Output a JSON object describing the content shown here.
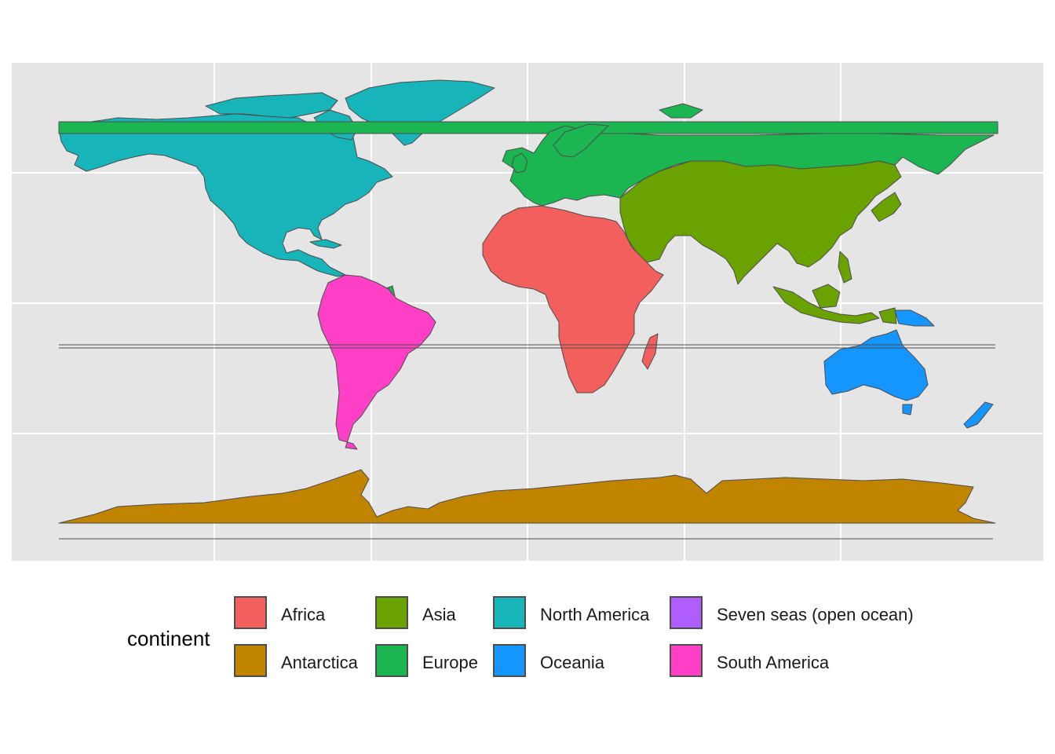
{
  "map": {
    "background": "#e5e5e5",
    "gridlines": "white",
    "stroke": "#4d4d4d"
  },
  "legend": {
    "title": "continent",
    "entries": [
      {
        "label": "Africa",
        "color": "#F8766D"
      },
      {
        "label": "Antarctica",
        "color": "#C49A00"
      },
      {
        "label": "Asia",
        "color": "#53B400"
      },
      {
        "label": "Europe",
        "color": "#00C094"
      },
      {
        "label": "North America",
        "color": "#00B6EB"
      },
      {
        "label": "Oceania",
        "color": "#A58AFF"
      },
      {
        "label": "Seven seas (open ocean)",
        "color": "#B55CFF"
      },
      {
        "label": "South America",
        "color": "#FB61D7"
      }
    ]
  },
  "chart_data": {
    "type": "choropleth",
    "projection": "equirectangular",
    "series": [
      {
        "name": "Africa",
        "color": "#F25F5C"
      },
      {
        "name": "Antarctica",
        "color": "#C08400"
      },
      {
        "name": "Asia",
        "color": "#6AA200"
      },
      {
        "name": "Europe",
        "color": "#1BB652"
      },
      {
        "name": "North America",
        "color": "#17B4BA"
      },
      {
        "name": "Oceania",
        "color": "#1596FF"
      },
      {
        "name": "Seven seas (open ocean)",
        "color": "#B05DFF"
      },
      {
        "name": "South America",
        "color": "#FF40C6"
      }
    ],
    "grid": true,
    "axis_labels": false,
    "legend_position": "bottom"
  }
}
